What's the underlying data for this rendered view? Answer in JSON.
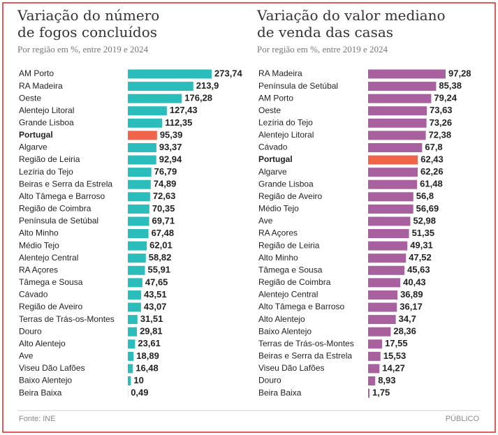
{
  "chart_data": [
    {
      "type": "bar",
      "orientation": "horizontal",
      "title_lines": [
        "Variação do número",
        "de fogos concluídos"
      ],
      "subtitle": "Por região em %, entre 2019 e 2024",
      "categories": [
        "AM Porto",
        "RA Madeira",
        "Oeste",
        "Alentejo Litoral",
        "Grande Lisboa",
        "Portugal",
        "Algarve",
        "Região de Leiria",
        "Lezíria do Tejo",
        "Beiras e Serra da Estrela",
        "Alto Tâmega e Barroso",
        "Região de Coimbra",
        "Península de Setúbal",
        "Alto Minho",
        "Médio Tejo",
        "Alentejo Central",
        "RA Açores",
        "Tâmega e Sousa",
        "Cávado",
        "Região de Aveiro",
        "Terras de Trás-os-Montes",
        "Douro",
        "Alto Alentejo",
        "Ave",
        "Viseu Dão Lafões",
        "Baixo Alentejo",
        "Beira Baixa"
      ],
      "values": [
        273.74,
        213.9,
        176.28,
        127.43,
        112.35,
        95.39,
        93.37,
        92.94,
        76.79,
        74.89,
        72.63,
        70.35,
        69.71,
        67.48,
        62.01,
        58.82,
        55.91,
        47.65,
        43.51,
        43.07,
        31.51,
        29.81,
        23.61,
        18.89,
        16.48,
        10,
        0.49
      ],
      "value_labels": [
        "273,74",
        "213,9",
        "176,28",
        "127,43",
        "112,35",
        "95,39",
        "93,37",
        "92,94",
        "76,79",
        "74,89",
        "72,63",
        "70,35",
        "69,71",
        "67,48",
        "62,01",
        "58,82",
        "55,91",
        "47,65",
        "43,51",
        "43,07",
        "31,51",
        "29,81",
        "23,61",
        "18,89",
        "16,48",
        "10",
        "0,49"
      ],
      "color": "#2bbcbc",
      "colors": [
        "#2bbcbc",
        "#2bbcbc",
        "#2bbcbc",
        "#2bbcbc",
        "#2bbcbc",
        "#f0644a",
        "#2bbcbc",
        "#2bbcbc",
        "#2bbcbc",
        "#2bbcbc",
        "#2bbcbc",
        "#2bbcbc",
        "#2bbcbc",
        "#2bbcbc",
        "#2bbcbc",
        "#2bbcbc",
        "#2bbcbc",
        "#2bbcbc",
        "#2bbcbc",
        "#2bbcbc",
        "#2bbcbc",
        "#2bbcbc",
        "#2bbcbc",
        "#2bbcbc",
        "#2bbcbc",
        "#2bbcbc",
        "#2bbcbc"
      ]
    },
    {
      "type": "bar",
      "orientation": "horizontal",
      "title_lines": [
        "Variação do valor mediano",
        "de venda das casas"
      ],
      "subtitle": "Por região em %, entre 2019 e 2024",
      "categories": [
        "RA Madeira",
        "Península de Setúbal",
        "AM Porto",
        "Oeste",
        "Lezíria do Tejo",
        "Alentejo Litoral",
        "Cávado",
        "Portugal",
        "Algarve",
        "Grande Lisboa",
        "Região de Aveiro",
        "Médio Tejo",
        "Ave",
        "RA Açores",
        "Região de Leiria",
        "Alto Minho",
        "Tâmega e Sousa",
        "Região de Coimbra",
        "Alentejo Central",
        "Alto Tâmega e Barroso",
        "Alto Alentejo",
        "Baixo Alentejo",
        "Terras de Trás-os-Montes",
        "Beiras e Serra da Estrela",
        "Viseu Dão Lafões",
        "Douro",
        "Beira Baixa"
      ],
      "values": [
        97.28,
        85.38,
        79.24,
        73.63,
        73.26,
        72.38,
        67.8,
        62.43,
        62.26,
        61.48,
        56.8,
        56.69,
        52.98,
        51.35,
        49.31,
        47.52,
        45.63,
        40.43,
        36.89,
        36.17,
        34.7,
        28.36,
        17.55,
        15.53,
        14.27,
        8.93,
        1.75
      ],
      "value_labels": [
        "97,28",
        "85,38",
        "79,24",
        "73,63",
        "73,26",
        "72,38",
        "67,8",
        "62,43",
        "62,26",
        "61,48",
        "56,8",
        "56,69",
        "52,98",
        "51,35",
        "49,31",
        "47,52",
        "45,63",
        "40,43",
        "36,89",
        "36,17",
        "34,7",
        "28,36",
        "17,55",
        "15,53",
        "14,27",
        "8,93",
        "1,75"
      ],
      "color": "#a8609e",
      "colors": [
        "#a8609e",
        "#a8609e",
        "#a8609e",
        "#a8609e",
        "#a8609e",
        "#a8609e",
        "#a8609e",
        "#f0644a",
        "#a8609e",
        "#a8609e",
        "#a8609e",
        "#a8609e",
        "#a8609e",
        "#a8609e",
        "#a8609e",
        "#a8609e",
        "#a8609e",
        "#a8609e",
        "#a8609e",
        "#a8609e",
        "#a8609e",
        "#a8609e",
        "#a8609e",
        "#a8609e",
        "#a8609e",
        "#a8609e",
        "#a8609e"
      ]
    }
  ],
  "source": "Fonte: INE",
  "publisher": "PÚBLICO"
}
